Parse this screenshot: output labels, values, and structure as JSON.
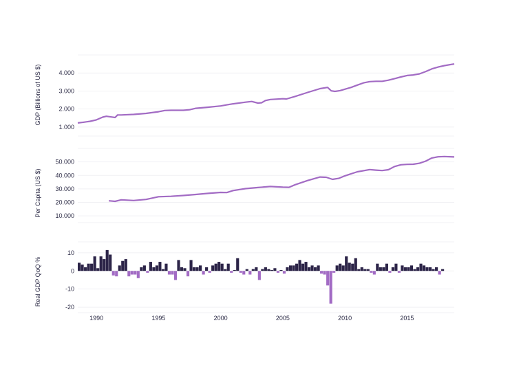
{
  "colors": {
    "line": "#a26bc4",
    "bar_positive": "#2c2448",
    "bar_negative": "#a26bc4",
    "grid": "#f1f1f4",
    "text": "#2b2a45"
  },
  "chart_data": [
    {
      "id": "gdp",
      "type": "line",
      "ylabel": "GDP (Billions of US $)",
      "ylim": [
        500,
        5000
      ],
      "yticks": [
        1000,
        2000,
        3000,
        4000
      ],
      "ytick_labels": [
        "1.000",
        "2.000",
        "3.000",
        "4.000"
      ],
      "xlim": [
        1988.5,
        2018.8
      ],
      "grid": true,
      "series": [
        {
          "x": [
            1988.5,
            1989.0,
            1989.5,
            1990.0,
            1990.5,
            1990.8,
            1991.2,
            1991.5,
            1991.7,
            1992.0,
            1993.0,
            1994.0,
            1995.0,
            1995.5,
            1996.0,
            1997.0,
            1997.5,
            1998.0,
            1999.0,
            2000.0,
            2000.5,
            2001.0,
            2002.0,
            2002.5,
            2003.0,
            2003.3,
            2003.6,
            2004.0,
            2005.0,
            2005.3,
            2006.0,
            2007.0,
            2008.0,
            2008.6,
            2008.9,
            2009.2,
            2009.6,
            2010.0,
            2010.5,
            2011.0,
            2011.5,
            2012.0,
            2012.5,
            2013.0,
            2013.5,
            2014.0,
            2014.5,
            2015.0,
            2015.5,
            2016.0,
            2016.5,
            2017.0,
            2017.5,
            2018.0,
            2018.8
          ],
          "y": [
            1230,
            1270,
            1320,
            1400,
            1550,
            1600,
            1560,
            1530,
            1670,
            1670,
            1700,
            1760,
            1850,
            1920,
            1930,
            1930,
            1960,
            2040,
            2100,
            2170,
            2230,
            2290,
            2380,
            2420,
            2330,
            2350,
            2470,
            2530,
            2570,
            2560,
            2700,
            2920,
            3130,
            3200,
            3010,
            2980,
            3020,
            3100,
            3200,
            3330,
            3450,
            3520,
            3540,
            3540,
            3600,
            3690,
            3780,
            3860,
            3890,
            3950,
            4080,
            4230,
            4330,
            4410,
            4500
          ]
        }
      ]
    },
    {
      "id": "per_capita",
      "type": "line",
      "ylabel": "Per Capita (US $)",
      "ylim": [
        5000,
        60000
      ],
      "yticks": [
        10000,
        20000,
        30000,
        40000,
        50000
      ],
      "ytick_labels": [
        "10.000",
        "20.000",
        "30.000",
        "40.000",
        "50.000"
      ],
      "xlim": [
        1988.5,
        2018.8
      ],
      "grid": true,
      "series": [
        {
          "x": [
            1991.0,
            1991.5,
            1992.0,
            1993.0,
            1994.0,
            1995.0,
            1996.0,
            1997.0,
            1998.0,
            1999.0,
            2000.0,
            2000.5,
            2001.0,
            2002.0,
            2003.0,
            2004.0,
            2005.0,
            2005.5,
            2006.0,
            2007.0,
            2008.0,
            2008.5,
            2009.0,
            2009.5,
            2010.0,
            2011.0,
            2012.0,
            2012.5,
            2013.0,
            2013.5,
            2014.0,
            2014.5,
            2015.0,
            2015.5,
            2016.0,
            2016.5,
            2017.0,
            2017.5,
            2018.0,
            2018.8
          ],
          "y": [
            21200,
            20800,
            21900,
            21400,
            22200,
            24200,
            24500,
            25100,
            25900,
            26700,
            27400,
            27300,
            28800,
            30200,
            31000,
            31800,
            31300,
            31200,
            33100,
            36200,
            38800,
            38600,
            37100,
            37800,
            39700,
            42700,
            44300,
            43900,
            43600,
            44200,
            46600,
            47900,
            48200,
            48300,
            49000,
            50600,
            52900,
            53800,
            54000,
            53700
          ]
        }
      ]
    },
    {
      "id": "real_gdp_qoq",
      "type": "bar",
      "ylabel": "Real GDP QoQ %",
      "ylim": [
        -23,
        16
      ],
      "yticks": [
        -20,
        -10,
        0,
        10
      ],
      "ytick_labels": [
        "-20",
        "-10",
        "0",
        "10"
      ],
      "xlim": [
        1988.5,
        2018.8
      ],
      "xticks": [
        1990,
        1995,
        2000,
        2005,
        2010,
        2015
      ],
      "xtick_labels": [
        "1990",
        "1995",
        "2000",
        "2005",
        "2010",
        "2015"
      ],
      "grid": true,
      "x_start": 1988.5,
      "x_step": 0.25,
      "values": [
        4.5,
        3.5,
        2,
        4,
        4,
        8,
        1.5,
        8,
        6.5,
        11.5,
        9,
        -2.5,
        -3,
        3,
        5.5,
        6.5,
        -3,
        -2,
        -2,
        -4,
        2,
        3,
        -1,
        5,
        2,
        3,
        5,
        1,
        4,
        -2,
        -2,
        -5,
        6,
        2,
        1.5,
        -3,
        6,
        2,
        2,
        3,
        -2,
        2,
        -1,
        3,
        4,
        5,
        4,
        1,
        4,
        -1,
        0.5,
        7,
        -1,
        -2,
        1,
        -2,
        1,
        2,
        -5,
        1,
        2,
        1,
        0.5,
        1.5,
        -1,
        0.5,
        -1.5,
        2,
        3,
        3,
        4,
        6,
        4,
        5,
        2,
        3,
        2,
        3,
        -1.5,
        -2,
        -8,
        -18,
        -1,
        3,
        4,
        3,
        8,
        4.5,
        4,
        7,
        1,
        2,
        1,
        1,
        -1,
        -2,
        4,
        2,
        2,
        4,
        -1,
        2,
        4,
        -1,
        3,
        2,
        2,
        3,
        1,
        2,
        4,
        3,
        2,
        2,
        1,
        2,
        -2,
        1
      ]
    }
  ]
}
